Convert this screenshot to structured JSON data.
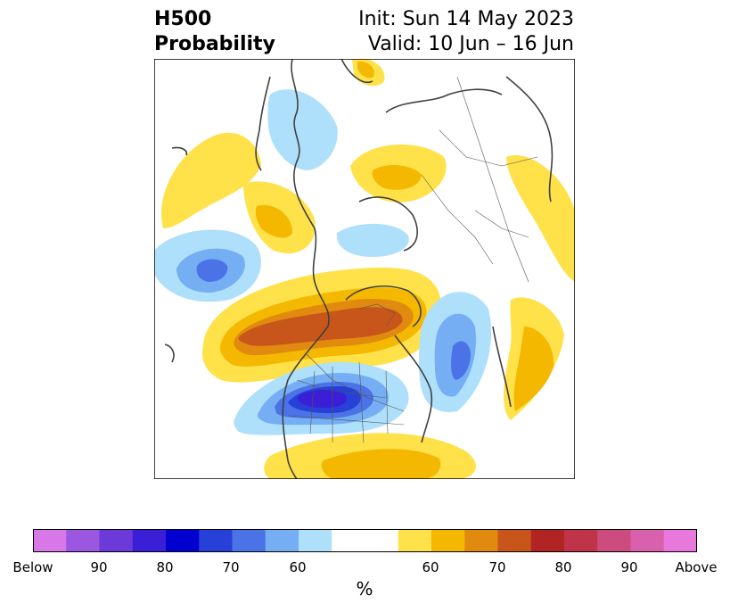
{
  "header": {
    "variable": "H500",
    "product": "Probability",
    "init": "Init: Sun 14 May 2023",
    "valid": "Valid: 10 Jun – 16 Jun"
  },
  "colorbar": {
    "label": "%",
    "colors": [
      "#d878e8",
      "#9b57e0",
      "#6b3ad8",
      "#3a1fd6",
      "#0000d0",
      "#2640d8",
      "#4b72e6",
      "#75aef2",
      "#aee0fc",
      "#ffffff",
      "#ffe14a",
      "#f4b800",
      "#e08a10",
      "#c8561a",
      "#b02424",
      "#c0344a",
      "#cc4c80",
      "#d860ac",
      "#e878dc"
    ],
    "tick_labels": [
      "Below",
      "90",
      "80",
      "70",
      "60",
      "60",
      "70",
      "80",
      "90",
      "Above"
    ]
  },
  "legend_colors": {
    "below_60": "#aee0fc",
    "below_70": "#75aef2",
    "below_80": "#4b72e6",
    "below_90": "#2640d8",
    "above_60": "#ffe14a",
    "above_70": "#f4b800",
    "above_80": "#e08a10",
    "above_90": "#c8561a",
    "coastline": "#404040"
  }
}
